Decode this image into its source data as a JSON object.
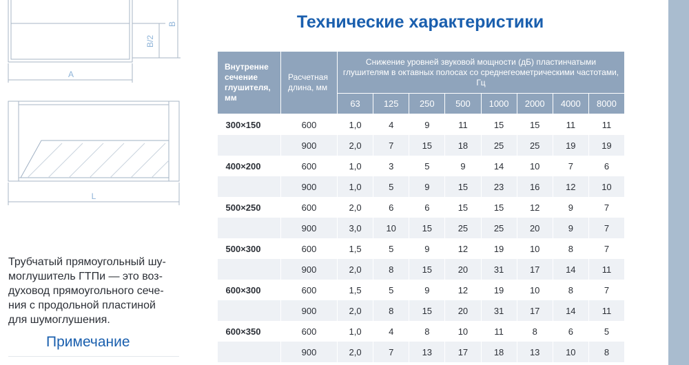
{
  "drawing": {
    "labels": {
      "half_height": "В/2",
      "height": "В",
      "width": "А",
      "length": "L"
    }
  },
  "description": {
    "lines": [
      "Трубчатый прямоугольный шу-",
      "моглушитель ГТПи — это воз-",
      "духовод прямоугольного сече-",
      "ния с продольной пластиной",
      "для шумоглушения."
    ]
  },
  "note": {
    "title": "Примечание"
  },
  "title": "Технические характеристики",
  "table": {
    "header": {
      "section": "Внутренне сечение глушителя, мм",
      "length": "Расчетная длина, мм",
      "group": "Снижение уровней звуковой мощности (дБ) пластинчатыми глушителям в октавных полосах со среднегеометрическими частотами, Гц",
      "frequencies": [
        "63",
        "125",
        "250",
        "500",
        "1000",
        "2000",
        "4000",
        "8000"
      ]
    },
    "groups": [
      {
        "section": "300×150",
        "rows": [
          {
            "length": "600",
            "values": [
              "1,0",
              "4",
              "9",
              "11",
              "15",
              "15",
              "11",
              "11"
            ]
          },
          {
            "length": "900",
            "values": [
              "2,0",
              "7",
              "15",
              "18",
              "25",
              "25",
              "19",
              "19"
            ]
          }
        ]
      },
      {
        "section": "400×200",
        "rows": [
          {
            "length": "600",
            "values": [
              "1,0",
              "3",
              "5",
              "9",
              "14",
              "10",
              "7",
              "6"
            ]
          },
          {
            "length": "900",
            "values": [
              "1,0",
              "5",
              "9",
              "15",
              "23",
              "16",
              "12",
              "10"
            ]
          }
        ]
      },
      {
        "section": "500×250",
        "rows": [
          {
            "length": "600",
            "values": [
              "2,0",
              "6",
              "6",
              "15",
              "15",
              "12",
              "9",
              "7"
            ]
          },
          {
            "length": "900",
            "values": [
              "3,0",
              "10",
              "15",
              "25",
              "25",
              "20",
              "9",
              "7"
            ]
          }
        ]
      },
      {
        "section": "500×300",
        "rows": [
          {
            "length": "600",
            "values": [
              "1,5",
              "5",
              "9",
              "12",
              "19",
              "10",
              "8",
              "7"
            ]
          },
          {
            "length": "900",
            "values": [
              "2,0",
              "8",
              "15",
              "20",
              "31",
              "17",
              "14",
              "11"
            ]
          }
        ]
      },
      {
        "section": "600×300",
        "rows": [
          {
            "length": "600",
            "values": [
              "1,5",
              "5",
              "9",
              "12",
              "19",
              "10",
              "8",
              "7"
            ]
          },
          {
            "length": "900",
            "values": [
              "2,0",
              "8",
              "15",
              "20",
              "31",
              "17",
              "14",
              "11"
            ]
          }
        ]
      },
      {
        "section": "600×350",
        "rows": [
          {
            "length": "600",
            "values": [
              "1,0",
              "4",
              "8",
              "10",
              "11",
              "8",
              "6",
              "5"
            ]
          },
          {
            "length": "900",
            "values": [
              "2,0",
              "7",
              "13",
              "17",
              "18",
              "13",
              "10",
              "8"
            ]
          }
        ]
      }
    ]
  }
}
